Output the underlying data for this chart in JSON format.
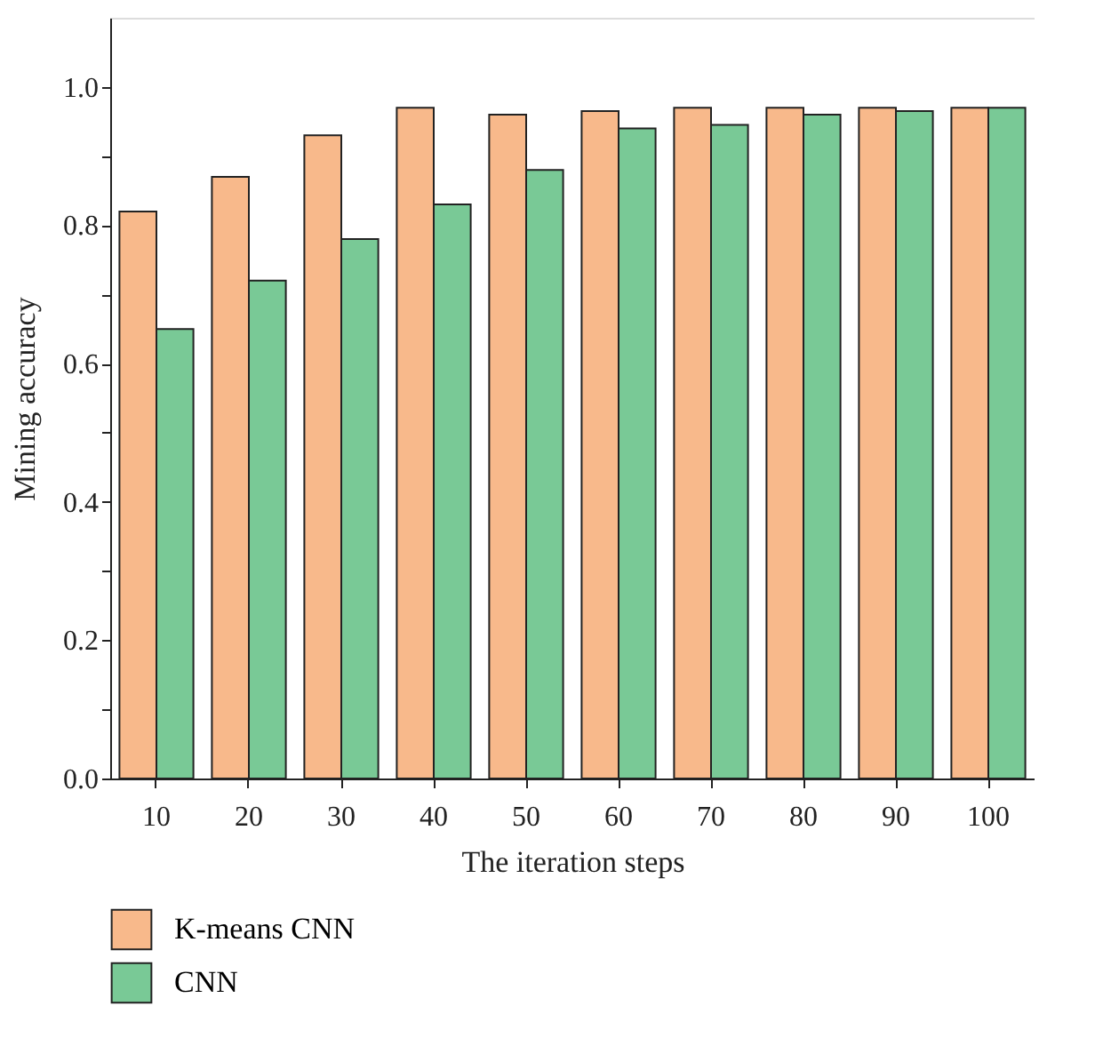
{
  "chart_data": {
    "type": "bar",
    "xlabel": "The iteration steps",
    "ylabel": "Mining accuracy",
    "categories": [
      "10",
      "20",
      "30",
      "40",
      "50",
      "60",
      "70",
      "80",
      "90",
      "100"
    ],
    "series": [
      {
        "name": "K-means CNN",
        "color": "#f8b98b",
        "values": [
          0.82,
          0.87,
          0.93,
          0.97,
          0.96,
          0.965,
          0.97,
          0.97,
          0.97,
          0.97
        ]
      },
      {
        "name": "CNN",
        "color": "#79c996",
        "values": [
          0.65,
          0.72,
          0.78,
          0.83,
          0.88,
          0.94,
          0.945,
          0.96,
          0.965,
          0.97
        ]
      }
    ],
    "ylim": [
      0,
      1.1
    ],
    "yticks": [
      {
        "value": 0,
        "label": "0.0"
      },
      {
        "value": 0.1,
        "label": null
      },
      {
        "value": 0.2,
        "label": "0.2"
      },
      {
        "value": 0.3,
        "label": null
      },
      {
        "value": 0.4,
        "label": "0.4"
      },
      {
        "value": 0.5,
        "label": null
      },
      {
        "value": 0.6,
        "label": "0.6"
      },
      {
        "value": 0.7,
        "label": null
      },
      {
        "value": 0.8,
        "label": "0.8"
      },
      {
        "value": 0.9,
        "label": null
      },
      {
        "value": 1.0,
        "label": "1.0"
      }
    ],
    "grid": false,
    "legend": "bottom left"
  }
}
